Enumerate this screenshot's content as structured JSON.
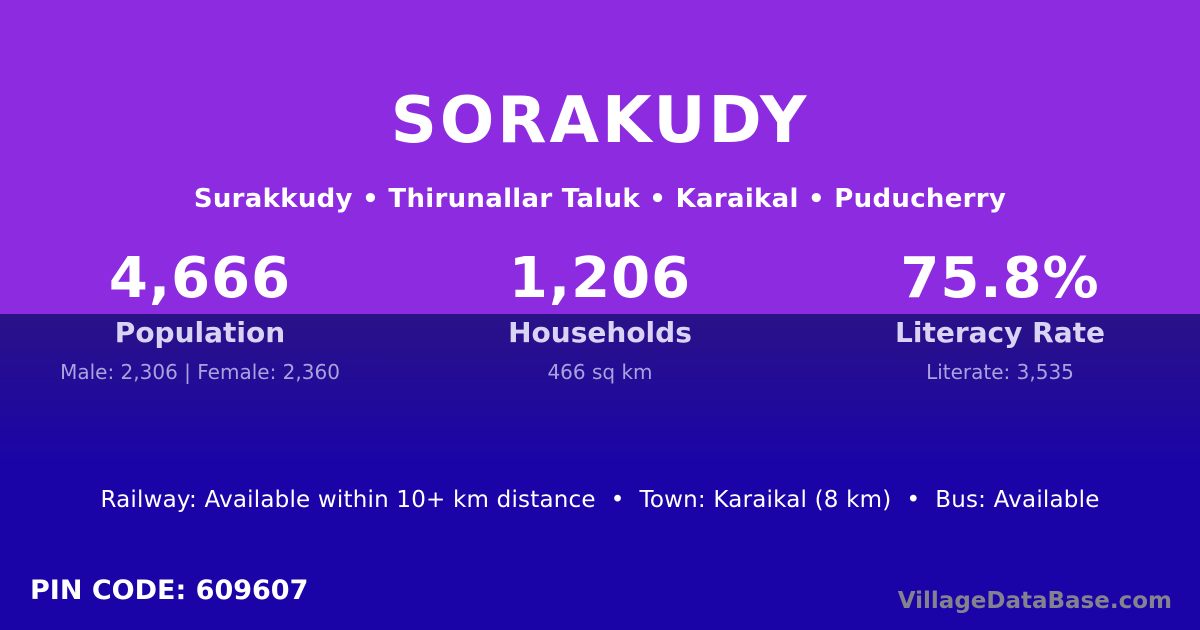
{
  "theme": {
    "purple": "#8C2BE0",
    "indigo_top": "#2A1287",
    "indigo": "#1A04A8",
    "label_color": "#D9D4F4",
    "sub_color": "#A9A3DD",
    "watermark_color": "#85828F"
  },
  "header": {
    "title": "SORAKUDY",
    "subtitle": "Surakkudy • Thirunallar Taluk • Karaikal • Puducherry"
  },
  "stats": [
    {
      "value": "4,666",
      "label": "Population",
      "detail": "Male: 2,306 | Female: 2,360"
    },
    {
      "value": "1,206",
      "label": "Households",
      "detail": "466 sq km"
    },
    {
      "value": "75.8%",
      "label": "Literacy Rate",
      "detail": "Literate: 3,535"
    }
  ],
  "transport_line": "Railway: Available within 10+ km distance  •  Town: Karaikal (8 km)  •  Bus: Available",
  "footer": {
    "pin_code": "PIN CODE: 609607",
    "watermark": "VillageDataBase.com"
  }
}
